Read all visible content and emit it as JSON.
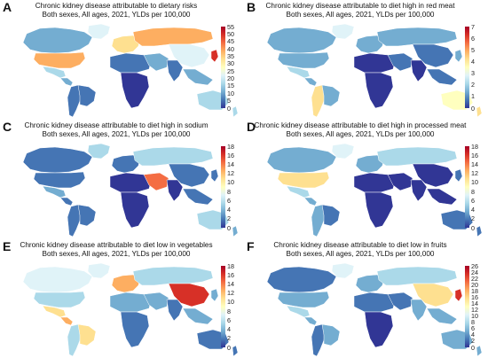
{
  "panels": [
    {
      "id": "A",
      "letter": "A",
      "title_line1": "Chronic kidney disease attributable to dietary risks",
      "title_line2": "Both sexes, All ages, 2021, YLDs per 100,000",
      "legend_ticks": [
        "55",
        "50",
        "45",
        "40",
        "35",
        "30",
        "25",
        "20",
        "15",
        "10",
        "5",
        "0"
      ]
    },
    {
      "id": "B",
      "letter": "B",
      "title_line1": "Chronic kidney disease attributable to diet high in red meat",
      "title_line2": "Both sexes, All ages, 2021, YLDs per 100,000",
      "legend_ticks": [
        "7",
        "6",
        "5",
        "4",
        "3",
        "2",
        "1",
        "0"
      ]
    },
    {
      "id": "C",
      "letter": "C",
      "title_line1": "Chronic kidney disease attributable to diet high in sodium",
      "title_line2": "Both sexes, All ages, 2021, YLDs per 100,000",
      "legend_ticks": [
        "18",
        "16",
        "14",
        "12",
        "10",
        "8",
        "6",
        "4",
        "2",
        "0"
      ]
    },
    {
      "id": "D",
      "letter": "D",
      "title_line1": "Chronic kidney disease attributable to diet high in processed meat",
      "title_line2": "Both sexes, All ages, 2021, YLDs per 100,000",
      "legend_ticks": [
        "18",
        "16",
        "14",
        "12",
        "10",
        "8",
        "6",
        "4",
        "2",
        "0"
      ]
    },
    {
      "id": "E",
      "letter": "E",
      "title_line1": "Chronic kidney disease attributable to diet low in vegetables",
      "title_line2": "Both sexes, All ages, 2021, YLDs per 100,000",
      "legend_ticks": [
        "18",
        "16",
        "14",
        "12",
        "10",
        "8",
        "6",
        "4",
        "2",
        "0"
      ]
    },
    {
      "id": "F",
      "letter": "F",
      "title_line1": "Chronic kidney disease attributable to diet low in fruits",
      "title_line2": "Both sexes, All ages, 2021, YLDs per 100,000",
      "legend_ticks": [
        "26",
        "24",
        "22",
        "20",
        "18",
        "16",
        "14",
        "12",
        "10",
        "8",
        "6",
        "4",
        "2",
        "0"
      ]
    }
  ],
  "palette": [
    "#313695",
    "#4575b4",
    "#74add1",
    "#abd9e9",
    "#e0f3f8",
    "#ffffbf",
    "#fee090",
    "#fdae61",
    "#f46d43",
    "#d73027",
    "#a50026"
  ],
  "region_colors": {
    "A": {
      "canada": "#74add1",
      "usa": "#fdae61",
      "greenland": "#e0f3f8",
      "mexico": "#abd9e9",
      "centam": "#74add1",
      "samerica": "#4575b4",
      "brazil": "#4575b4",
      "europe": "#fee090",
      "russia": "#fdae61",
      "nafrica": "#4575b4",
      "safrica": "#313695",
      "middleeast": "#74add1",
      "india": "#4575b4",
      "china": "#e0f3f8",
      "seasia": "#74add1",
      "japan": "#d73027",
      "australia": "#abd9e9",
      "nz": "#abd9e9"
    },
    "B": {
      "canada": "#74add1",
      "usa": "#74add1",
      "greenland": "#e0f3f8",
      "mexico": "#abd9e9",
      "centam": "#74add1",
      "samerica": "#fee090",
      "brazil": "#74add1",
      "europe": "#74add1",
      "russia": "#74add1",
      "nafrica": "#313695",
      "safrica": "#313695",
      "middleeast": "#4575b4",
      "india": "#313695",
      "china": "#4575b4",
      "seasia": "#4575b4",
      "japan": "#74add1",
      "australia": "#ffffbf",
      "nz": "#fee090"
    },
    "C": {
      "canada": "#4575b4",
      "usa": "#4575b4",
      "greenland": "#abd9e9",
      "mexico": "#74add1",
      "centam": "#4575b4",
      "samerica": "#4575b4",
      "brazil": "#4575b4",
      "europe": "#4575b4",
      "russia": "#abd9e9",
      "nafrica": "#313695",
      "safrica": "#313695",
      "middleeast": "#f46d43",
      "india": "#313695",
      "china": "#4575b4",
      "seasia": "#4575b4",
      "japan": "#4575b4",
      "australia": "#abd9e9",
      "nz": "#74add1"
    },
    "D": {
      "canada": "#74add1",
      "usa": "#fee090",
      "greenland": "#e0f3f8",
      "mexico": "#abd9e9",
      "centam": "#74add1",
      "samerica": "#74add1",
      "brazil": "#4575b4",
      "europe": "#74add1",
      "russia": "#abd9e9",
      "nafrica": "#313695",
      "safrica": "#313695",
      "middleeast": "#313695",
      "india": "#313695",
      "china": "#313695",
      "seasia": "#313695",
      "japan": "#4575b4",
      "australia": "#4575b4",
      "nz": "#4575b4"
    },
    "E": {
      "canada": "#e0f3f8",
      "usa": "#abd9e9",
      "greenland": "#e0f3f8",
      "mexico": "#fee090",
      "centam": "#fdae61",
      "samerica": "#abd9e9",
      "brazil": "#fee090",
      "europe": "#fdae61",
      "russia": "#abd9e9",
      "nafrica": "#74add1",
      "safrica": "#4575b4",
      "middleeast": "#74add1",
      "india": "#4575b4",
      "china": "#d73027",
      "seasia": "#74add1",
      "japan": "#74add1",
      "australia": "#4575b4",
      "nz": "#4575b4"
    },
    "F": {
      "canada": "#4575b4",
      "usa": "#74add1",
      "greenland": "#e0f3f8",
      "mexico": "#abd9e9",
      "centam": "#74add1",
      "samerica": "#4575b4",
      "brazil": "#74add1",
      "europe": "#74add1",
      "russia": "#abd9e9",
      "nafrica": "#4575b4",
      "safrica": "#313695",
      "middleeast": "#4575b4",
      "india": "#74add1",
      "china": "#fee090",
      "seasia": "#74add1",
      "japan": "#d73027",
      "australia": "#74add1",
      "nz": "#74add1"
    }
  }
}
